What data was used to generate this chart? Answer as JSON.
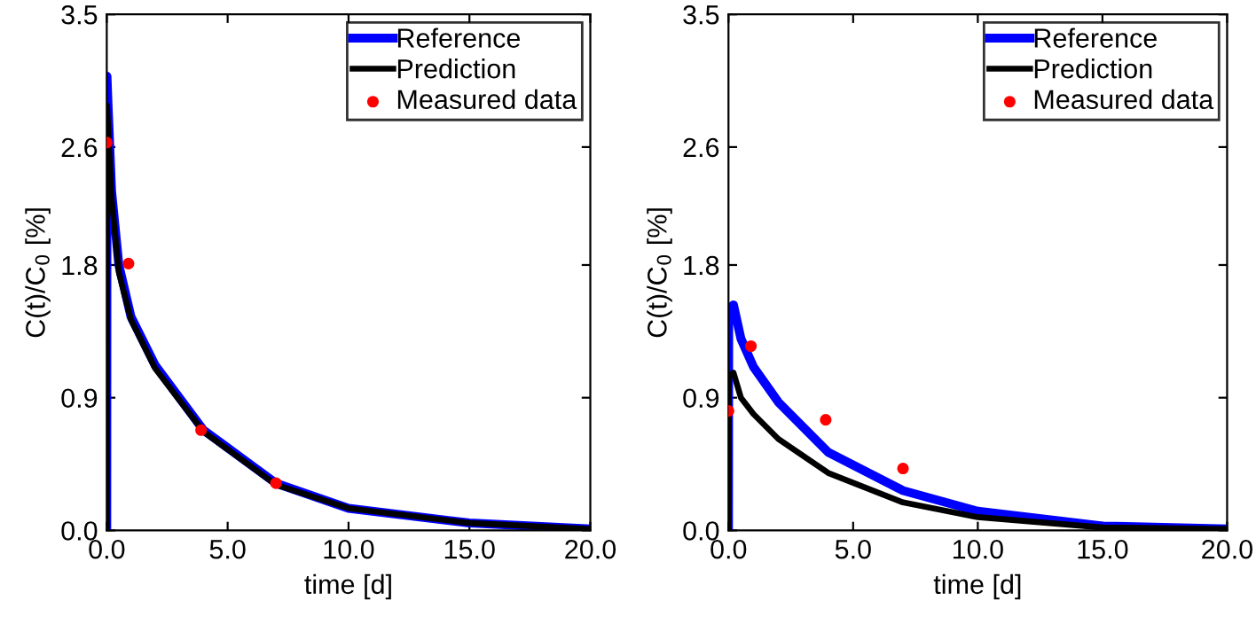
{
  "chart_data": [
    {
      "type": "line",
      "xlabel": "time [d]",
      "ylabel": "C(t)/C$_{0}$ [%]",
      "xlim": [
        0,
        20
      ],
      "ylim": [
        0,
        3.5
      ],
      "xticks": [
        {
          "value": 0,
          "label": "0.0"
        },
        {
          "value": 5,
          "label": "5.0"
        },
        {
          "value": 10,
          "label": "10.0"
        },
        {
          "value": 15,
          "label": "15.0"
        },
        {
          "value": 20,
          "label": "20.0"
        }
      ],
      "yticks": [
        {
          "value": 0,
          "label": "0.0"
        },
        {
          "value": 0.9,
          "label": "0.9"
        },
        {
          "value": 1.8,
          "label": "1.8"
        },
        {
          "value": 2.6,
          "label": "2.6"
        },
        {
          "value": 3.5,
          "label": "3.5"
        }
      ],
      "grid": false,
      "legend": "top right",
      "series": [
        {
          "name": "Reference",
          "color": "#0000ff",
          "x": [
            0,
            0.01,
            0.05,
            0.2,
            0.5,
            1,
            2,
            4,
            7,
            10,
            15,
            20
          ],
          "values": [
            0,
            3.08,
            2.9,
            2.3,
            1.8,
            1.45,
            1.12,
            0.68,
            0.32,
            0.15,
            0.05,
            0.01
          ]
        },
        {
          "name": "Prediction",
          "color": "#000000",
          "x": [
            0,
            0.01,
            0.05,
            0.2,
            0.5,
            1,
            2,
            4,
            7,
            10,
            15,
            20
          ],
          "values": [
            0,
            2.88,
            2.75,
            2.25,
            1.75,
            1.43,
            1.1,
            0.67,
            0.31,
            0.15,
            0.05,
            0.01
          ]
        },
        {
          "name": "Measured data",
          "type": "scatter",
          "marker": "circle",
          "color": "#ff0000",
          "x": [
            0,
            0.9,
            3.9,
            7
          ],
          "values": [
            2.63,
            1.81,
            0.68,
            0.32
          ]
        }
      ]
    },
    {
      "type": "line",
      "xlabel": "time [d]",
      "ylabel": "C(t)/C$_{0}$ [%]",
      "xlim": [
        0,
        20
      ],
      "ylim": [
        0,
        3.5
      ],
      "xticks": [
        {
          "value": 0,
          "label": "0.0"
        },
        {
          "value": 5,
          "label": "5.0"
        },
        {
          "value": 10,
          "label": "10.0"
        },
        {
          "value": 15,
          "label": "15.0"
        },
        {
          "value": 20,
          "label": "20.0"
        }
      ],
      "yticks": [
        {
          "value": 0,
          "label": "0.0"
        },
        {
          "value": 0.9,
          "label": "0.9"
        },
        {
          "value": 1.8,
          "label": "1.8"
        },
        {
          "value": 2.6,
          "label": "2.6"
        },
        {
          "value": 3.5,
          "label": "3.5"
        }
      ],
      "grid": false,
      "legend": "top right",
      "series": [
        {
          "name": "Reference",
          "color": "#0000ff",
          "x": [
            0,
            0.01,
            0.2,
            0.5,
            1,
            2,
            4,
            7,
            10,
            15,
            20
          ],
          "values": [
            0,
            1.5,
            1.53,
            1.3,
            1.11,
            0.87,
            0.53,
            0.27,
            0.13,
            0.03,
            0.01
          ]
        },
        {
          "name": "Prediction",
          "color": "#000000",
          "x": [
            0,
            0.01,
            0.2,
            0.5,
            1,
            2,
            4,
            7,
            10,
            15,
            20
          ],
          "values": [
            0,
            1.05,
            1.07,
            0.9,
            0.79,
            0.62,
            0.39,
            0.19,
            0.09,
            0.02,
            0.01
          ]
        },
        {
          "name": "Measured data",
          "type": "scatter",
          "marker": "circle",
          "color": "#ff0000",
          "x": [
            0,
            0.9,
            3.9,
            7
          ],
          "values": [
            0.81,
            1.25,
            0.75,
            0.42
          ]
        }
      ]
    }
  ]
}
